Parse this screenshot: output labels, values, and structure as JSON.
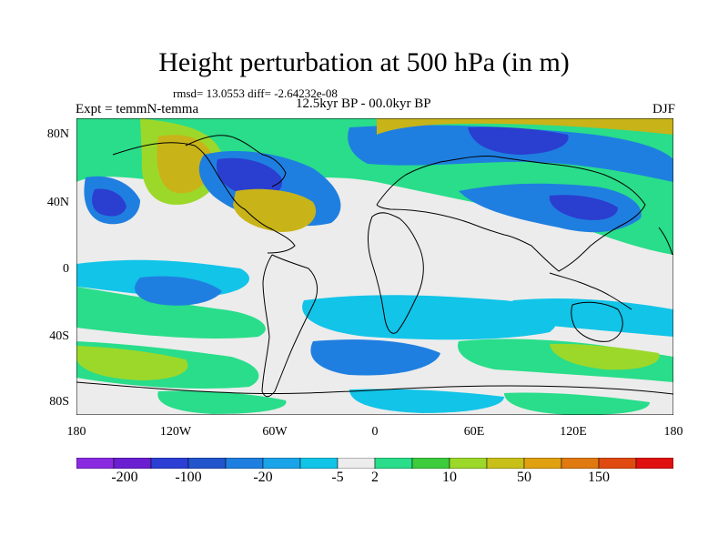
{
  "title": "Height perturbation at 500 hPa (in m)",
  "stats_text": "rmsd= 13.0553 diff= -2.64232e-08",
  "experiment_text": "Expt = temmN-temma",
  "period_text": "12.5kyr BP - 00.0kyr BP",
  "season_text": "DJF",
  "lat_labels": [
    "80N",
    "40N",
    "0",
    "40S",
    "80S"
  ],
  "lon_labels": [
    "180",
    "120W",
    "60W",
    "0",
    "60E",
    "120E",
    "180"
  ],
  "colorbar": {
    "colors": [
      "#8a2be2",
      "#6a1fd0",
      "#2b3fd4",
      "#2255cc",
      "#1f7fe0",
      "#1aa3e8",
      "#12c4e8",
      "#ececec",
      "#29dd8a",
      "#3ccc3c",
      "#9cd82a",
      "#c8c018",
      "#e0a010",
      "#e07a10",
      "#e04a10",
      "#e01010"
    ],
    "labels": [
      "-200",
      "-100",
      "-20",
      "-5",
      "2",
      "10",
      "50",
      "150"
    ]
  },
  "colors": {
    "strong_neg": "#2a3ed0",
    "neg": "#1f7fe0",
    "weak_neg": "#12c4e8",
    "neutral": "#ececec",
    "weak_pos": "#29dd8a",
    "pos": "#9cd82a",
    "strong_pos": "#c8b418"
  }
}
